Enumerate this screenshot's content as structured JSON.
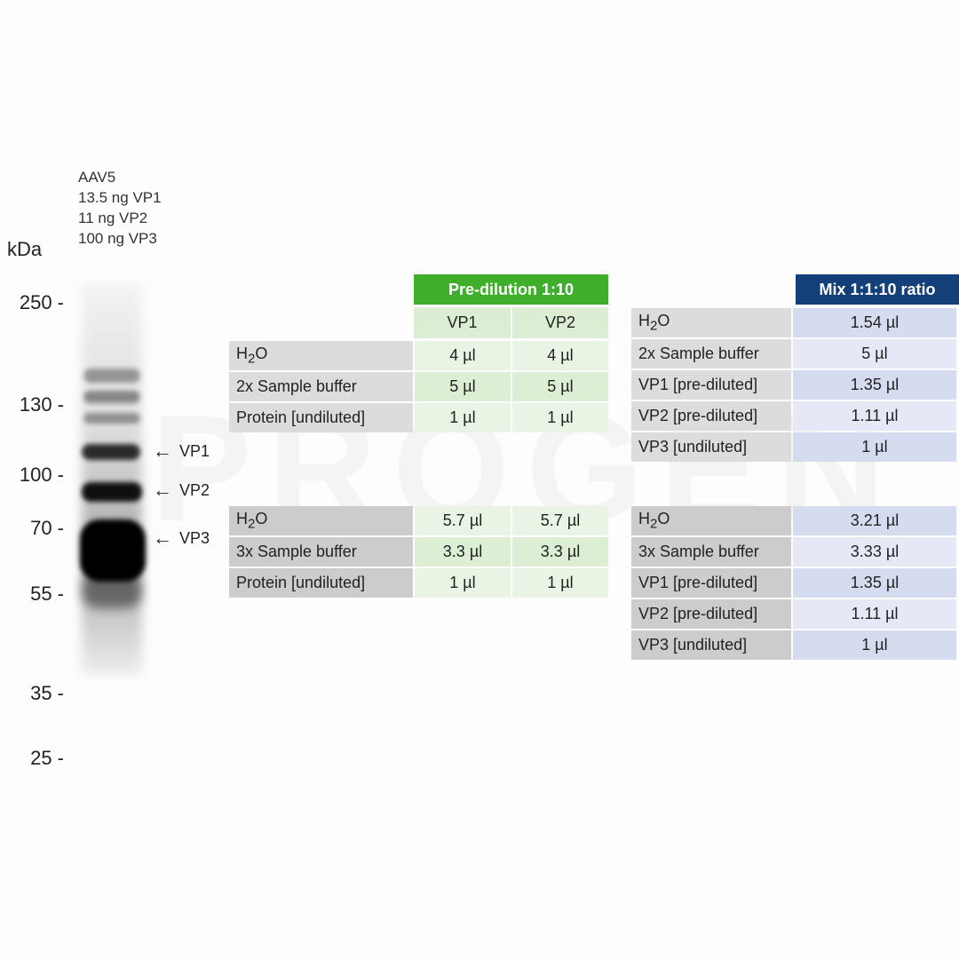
{
  "gel": {
    "sample_lines": [
      "AAV5",
      "13.5 ng  VP1",
      "11 ng VP2",
      "100 ng VP3"
    ],
    "kda_label": "kDa",
    "markers": [
      "250 -",
      "130 -",
      "100 -",
      "70 -",
      "55 -",
      "35 -",
      "25 -"
    ],
    "arrows": [
      "VP1",
      "VP2",
      "VP3"
    ]
  },
  "watermark": "PROGEN",
  "predilution": {
    "header": "Pre-dilution 1:10",
    "columns": [
      "VP1",
      "VP2"
    ],
    "block1": [
      {
        "label": "H2O",
        "vp1": "4 µl",
        "vp2": "4 µl"
      },
      {
        "label": "2x  Sample buffer",
        "vp1": "5 µl",
        "vp2": "5 µl"
      },
      {
        "label": "Protein [undiluted]",
        "vp1": "1 µl",
        "vp2": "1 µl"
      }
    ],
    "block2": [
      {
        "label": "H2O",
        "vp1": "5.7 µl",
        "vp2": "5.7 µl"
      },
      {
        "label": "3x  Sample buffer",
        "vp1": "3.3 µl",
        "vp2": "3.3 µl"
      },
      {
        "label": "Protein [undiluted]",
        "vp1": "1 µl",
        "vp2": "1 µl"
      }
    ]
  },
  "mix": {
    "header": "Mix 1:1:10 ratio",
    "block1": [
      {
        "label": "H2O",
        "value": "1.54 µl"
      },
      {
        "label": "2x  Sample buffer",
        "value": "5 µl"
      },
      {
        "label": "VP1 [pre-diluted]",
        "value": "1.35 µl"
      },
      {
        "label": "VP2 [pre-diluted]",
        "value": "1.11 µl"
      },
      {
        "label": "VP3 [undiluted]",
        "value": "1 µl"
      }
    ],
    "block2": [
      {
        "label": "H2O",
        "value": "3.21 µl"
      },
      {
        "label": "3x  Sample buffer",
        "value": "3.33 µl"
      },
      {
        "label": "VP1 [pre-diluted]",
        "value": "1.35 µl"
      },
      {
        "label": "VP2 [pre-diluted]",
        "value": "1.11 µl"
      },
      {
        "label": "VP3 [undiluted]",
        "value": "1 µl"
      }
    ]
  }
}
